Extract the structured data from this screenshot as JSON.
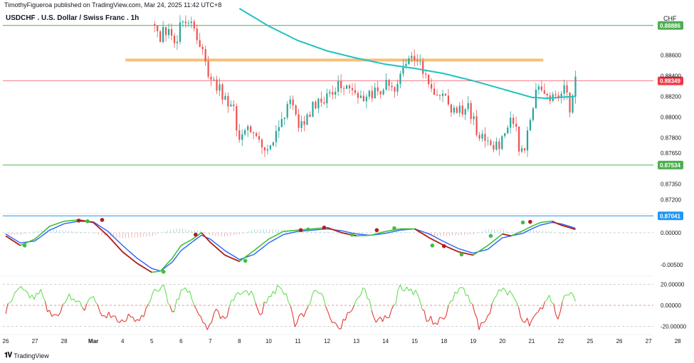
{
  "header": {
    "publisher": "TimothyFigueroa published on TradingView.com, Mar 24, 2025 11:42 UTC+8",
    "title": "USDCHF . U.S. Dollar / Swiss Franc . 1h",
    "unit": "CHF"
  },
  "footer": {
    "brand": "TradingView"
  },
  "colors": {
    "bull": "#26a69a",
    "bear": "#ef5350",
    "ma": "#22c1c3",
    "support_green": "#4caf50",
    "zone_orange": "#f7c07a",
    "level_blue": "#2196f3",
    "current_red": "#f23645",
    "osc_green": "#3fbf3f",
    "osc_blue": "#2962ff",
    "osc_red": "#b71c1c",
    "rsi_green": "#66dd55",
    "rsi_red": "#e53935"
  },
  "chart_data": [
    {
      "type": "candlestick",
      "panel": "price",
      "title": "USDCHF . U.S. Dollar / Swiss Franc . 1h",
      "ylim": [
        0.8705,
        0.8905
      ],
      "y_ticks": [
        "0.88600",
        "0.88400",
        "0.88200",
        "0.88000",
        "0.87800",
        "0.87650",
        "0.87350",
        "0.87200"
      ],
      "x_ticks": [
        "26",
        "27",
        "28",
        "Mar",
        "4",
        "5",
        "6",
        "7",
        "8",
        "10",
        "11",
        "12",
        "13",
        "14",
        "15",
        "18",
        "19",
        "20",
        "21",
        "22",
        "25",
        "26",
        "27",
        "28"
      ],
      "visible_from_tick": 5,
      "last_candle_tick": 19.5,
      "close_path": [
        [
          5.0,
          0.889
        ],
        [
          5.3,
          0.8878
        ],
        [
          5.6,
          0.8886
        ],
        [
          5.75,
          0.8862
        ],
        [
          6.0,
          0.889
        ],
        [
          6.4,
          0.8885
        ],
        [
          6.7,
          0.8868
        ],
        [
          7.0,
          0.8838
        ],
        [
          7.4,
          0.8822
        ],
        [
          7.8,
          0.8804
        ],
        [
          8.0,
          0.878
        ],
        [
          8.4,
          0.879
        ],
        [
          8.8,
          0.8772
        ],
        [
          9.0,
          0.8768
        ],
        [
          9.4,
          0.88
        ],
        [
          9.8,
          0.8812
        ],
        [
          10.0,
          0.879
        ],
        [
          10.5,
          0.8808
        ],
        [
          11.0,
          0.8822
        ],
        [
          11.5,
          0.8835
        ],
        [
          11.8,
          0.8828
        ],
        [
          12.2,
          0.8818
        ],
        [
          12.6,
          0.8822
        ],
        [
          13.0,
          0.8832
        ],
        [
          13.3,
          0.8824
        ],
        [
          13.6,
          0.8845
        ],
        [
          13.85,
          0.8856
        ],
        [
          14.2,
          0.8847
        ],
        [
          14.5,
          0.8835
        ],
        [
          14.8,
          0.882
        ],
        [
          15.2,
          0.8812
        ],
        [
          15.5,
          0.8805
        ],
        [
          15.8,
          0.8808
        ],
        [
          16.0,
          0.8796
        ],
        [
          16.3,
          0.8778
        ],
        [
          16.6,
          0.877
        ],
        [
          16.9,
          0.8776
        ],
        [
          17.1,
          0.8788
        ],
        [
          17.3,
          0.8804
        ],
        [
          17.6,
          0.8768
        ],
        [
          17.8,
          0.877
        ],
        [
          17.95,
          0.88
        ],
        [
          18.2,
          0.8834
        ],
        [
          18.5,
          0.8826
        ],
        [
          18.8,
          0.8817
        ],
        [
          19.1,
          0.8832
        ],
        [
          19.3,
          0.8806
        ],
        [
          19.5,
          0.8835
        ]
      ],
      "moving_average": [
        [
          8.0,
          0.8905
        ],
        [
          9.0,
          0.8888
        ],
        [
          10.0,
          0.8874
        ],
        [
          11.0,
          0.8864
        ],
        [
          12.0,
          0.8857
        ],
        [
          13.0,
          0.8851
        ],
        [
          14.0,
          0.8847
        ],
        [
          15.0,
          0.8842
        ],
        [
          16.0,
          0.8835
        ],
        [
          17.0,
          0.8827
        ],
        [
          17.5,
          0.8823
        ],
        [
          18.0,
          0.8819
        ],
        [
          18.5,
          0.8818
        ],
        [
          19.0,
          0.8819
        ],
        [
          19.5,
          0.882
        ]
      ],
      "levels": [
        {
          "price": 0.88886,
          "label": "0.88886",
          "color_key": "support_green"
        },
        {
          "price": 0.88349,
          "label": "0.88349",
          "color_key": "current_red"
        },
        {
          "price": 0.87534,
          "label": "0.87534",
          "color_key": "support_green"
        },
        {
          "price": 0.87041,
          "label": "0.87041",
          "color_key": "level_blue"
        }
      ],
      "zone": {
        "from_tick": 4.1,
        "to_tick": 18.4,
        "price": 0.88551
      }
    },
    {
      "type": "line",
      "panel": "oscillator",
      "ylim": [
        -0.0068,
        0.003
      ],
      "y_ticks": [
        "0.00000",
        "-0.00500"
      ],
      "series": [
        {
          "role": "fast",
          "color_key": "osc_green",
          "values": [
            [
              0.0,
              -0.0005
            ],
            [
              0.5,
              -0.002
            ],
            [
              1.0,
              -0.001
            ],
            [
              1.5,
              0.001
            ],
            [
              2.0,
              0.0018
            ],
            [
              2.5,
              0.002
            ],
            [
              3.0,
              0.0016
            ],
            [
              3.5,
              -0.0005
            ],
            [
              4.0,
              -0.003
            ],
            [
              4.5,
              -0.0048
            ],
            [
              5.0,
              -0.0062
            ],
            [
              5.3,
              -0.006
            ],
            [
              5.7,
              -0.004
            ],
            [
              6.0,
              -0.002
            ],
            [
              6.4,
              -0.001
            ],
            [
              6.7,
              0.0
            ],
            [
              7.0,
              -0.0015
            ],
            [
              7.5,
              -0.0035
            ],
            [
              8.0,
              -0.0045
            ],
            [
              8.5,
              -0.0028
            ],
            [
              9.0,
              -0.001
            ],
            [
              9.5,
              0.0002
            ],
            [
              10.0,
              0.0004
            ],
            [
              10.5,
              0.0006
            ],
            [
              11.0,
              0.0008
            ],
            [
              11.5,
              0.0
            ],
            [
              12.0,
              -0.0005
            ],
            [
              12.5,
              -0.0004
            ],
            [
              13.0,
              0.0002
            ],
            [
              13.5,
              0.0006
            ],
            [
              14.0,
              0.0006
            ],
            [
              14.5,
              -0.0008
            ],
            [
              15.0,
              -0.002
            ],
            [
              15.5,
              -0.003
            ],
            [
              16.0,
              -0.0035
            ],
            [
              16.5,
              -0.002
            ],
            [
              17.0,
              -0.0002
            ],
            [
              17.3,
              -0.0005
            ],
            [
              17.7,
              0.0003
            ],
            [
              18.0,
              0.001
            ],
            [
              18.3,
              0.0016
            ],
            [
              18.7,
              0.0018
            ],
            [
              19.0,
              0.0012
            ],
            [
              19.3,
              0.0008
            ],
            [
              19.5,
              0.0005
            ]
          ]
        },
        {
          "role": "slow",
          "color_key": "osc_blue",
          "values": [
            [
              0.0,
              -0.0002
            ],
            [
              0.5,
              -0.0016
            ],
            [
              1.0,
              -0.0013
            ],
            [
              1.5,
              0.0004
            ],
            [
              2.0,
              0.0014
            ],
            [
              2.5,
              0.0018
            ],
            [
              3.0,
              0.0017
            ],
            [
              3.5,
              0.0002
            ],
            [
              4.0,
              -0.002
            ],
            [
              4.5,
              -0.004
            ],
            [
              5.0,
              -0.0056
            ],
            [
              5.3,
              -0.006
            ],
            [
              5.7,
              -0.0046
            ],
            [
              6.0,
              -0.0028
            ],
            [
              6.4,
              -0.0014
            ],
            [
              6.7,
              -0.0004
            ],
            [
              7.0,
              -0.001
            ],
            [
              7.5,
              -0.0028
            ],
            [
              8.0,
              -0.0042
            ],
            [
              8.5,
              -0.0034
            ],
            [
              9.0,
              -0.0016
            ],
            [
              9.5,
              -0.0003
            ],
            [
              10.0,
              0.0002
            ],
            [
              10.5,
              0.0004
            ],
            [
              11.0,
              0.0006
            ],
            [
              11.5,
              0.0003
            ],
            [
              12.0,
              -0.0002
            ],
            [
              12.5,
              -0.0004
            ],
            [
              13.0,
              -0.0001
            ],
            [
              13.5,
              0.0004
            ],
            [
              14.0,
              0.0006
            ],
            [
              14.5,
              -0.0002
            ],
            [
              15.0,
              -0.0014
            ],
            [
              15.5,
              -0.0025
            ],
            [
              16.0,
              -0.0032
            ],
            [
              16.5,
              -0.0026
            ],
            [
              17.0,
              -0.0008
            ],
            [
              17.3,
              -0.0005
            ],
            [
              17.7,
              -0.0001
            ],
            [
              18.0,
              0.0006
            ],
            [
              18.3,
              0.0012
            ],
            [
              18.7,
              0.0016
            ],
            [
              19.0,
              0.0014
            ],
            [
              19.3,
              0.001
            ],
            [
              19.5,
              0.0007
            ]
          ]
        }
      ],
      "markers": [
        {
          "x": 0.65,
          "y": -0.002,
          "color_key": "osc_green"
        },
        {
          "x": 2.5,
          "y": 0.0019,
          "color_key": "osc_red"
        },
        {
          "x": 2.8,
          "y": 0.0018,
          "color_key": "osc_green"
        },
        {
          "x": 3.3,
          "y": 0.002,
          "color_key": "osc_red"
        },
        {
          "x": 5.4,
          "y": -0.0061,
          "color_key": "osc_green"
        },
        {
          "x": 6.5,
          "y": -0.0003,
          "color_key": "osc_red"
        },
        {
          "x": 8.2,
          "y": -0.0044,
          "color_key": "osc_green"
        },
        {
          "x": 10.1,
          "y": 0.0004,
          "color_key": "osc_red"
        },
        {
          "x": 10.35,
          "y": 0.0005,
          "color_key": "osc_green"
        },
        {
          "x": 10.9,
          "y": 0.0008,
          "color_key": "osc_red"
        },
        {
          "x": 11.85,
          "y": -0.0003,
          "color_key": "osc_green"
        },
        {
          "x": 12.7,
          "y": 0.0004,
          "color_key": "osc_red"
        },
        {
          "x": 13.3,
          "y": 0.0007,
          "color_key": "osc_green"
        },
        {
          "x": 14.6,
          "y": -0.002,
          "color_key": "osc_green"
        },
        {
          "x": 15.0,
          "y": -0.0021,
          "color_key": "osc_red"
        },
        {
          "x": 15.6,
          "y": -0.0034,
          "color_key": "osc_green"
        },
        {
          "x": 16.6,
          "y": -0.0005,
          "color_key": "osc_green"
        },
        {
          "x": 17.7,
          "y": 0.0016,
          "color_key": "osc_green"
        },
        {
          "x": 17.95,
          "y": 0.0017,
          "color_key": "osc_red"
        }
      ]
    },
    {
      "type": "line",
      "panel": "momentum",
      "ylim": [
        -28,
        28
      ],
      "y_ticks": [
        "20.00000",
        "0.00000",
        "-20.00000"
      ],
      "series": [
        {
          "role": "momentum",
          "values": [
            [
              0.0,
              -5
            ],
            [
              0.3,
              12
            ],
            [
              0.6,
              18
            ],
            [
              0.9,
              6
            ],
            [
              1.2,
              14
            ],
            [
              1.5,
              -8
            ],
            [
              1.8,
              -12
            ],
            [
              2.1,
              10
            ],
            [
              2.4,
              4
            ],
            [
              2.7,
              -3
            ],
            [
              3.0,
              8
            ],
            [
              3.3,
              -14
            ],
            [
              3.6,
              -8
            ],
            [
              3.9,
              -18
            ],
            [
              4.2,
              -10
            ],
            [
              4.5,
              -14
            ],
            [
              4.8,
              -6
            ],
            [
              5.1,
              14
            ],
            [
              5.4,
              18
            ],
            [
              5.7,
              -8
            ],
            [
              6.0,
              12
            ],
            [
              6.3,
              15
            ],
            [
              6.6,
              -12
            ],
            [
              6.9,
              -20
            ],
            [
              7.2,
              -6
            ],
            [
              7.5,
              -16
            ],
            [
              7.8,
              8
            ],
            [
              8.1,
              12
            ],
            [
              8.4,
              14
            ],
            [
              8.7,
              -10
            ],
            [
              9.0,
              10
            ],
            [
              9.3,
              16
            ],
            [
              9.6,
              10
            ],
            [
              9.9,
              -18
            ],
            [
              10.2,
              -8
            ],
            [
              10.5,
              10
            ],
            [
              10.8,
              14
            ],
            [
              11.1,
              -16
            ],
            [
              11.4,
              -22
            ],
            [
              11.7,
              -10
            ],
            [
              12.0,
              6
            ],
            [
              12.3,
              16
            ],
            [
              12.6,
              -12
            ],
            [
              12.9,
              -14
            ],
            [
              13.2,
              -8
            ],
            [
              13.5,
              18
            ],
            [
              13.8,
              14
            ],
            [
              14.1,
              10
            ],
            [
              14.4,
              -12
            ],
            [
              14.7,
              -16
            ],
            [
              15.0,
              -14
            ],
            [
              15.3,
              8
            ],
            [
              15.6,
              16
            ],
            [
              15.9,
              4
            ],
            [
              16.2,
              -20
            ],
            [
              16.5,
              -10
            ],
            [
              16.8,
              12
            ],
            [
              17.1,
              16
            ],
            [
              17.4,
              6
            ],
            [
              17.7,
              -12
            ],
            [
              18.0,
              -18
            ],
            [
              18.3,
              -4
            ],
            [
              18.6,
              8
            ],
            [
              18.9,
              -10
            ],
            [
              19.2,
              12
            ],
            [
              19.5,
              6
            ]
          ]
        }
      ]
    }
  ]
}
